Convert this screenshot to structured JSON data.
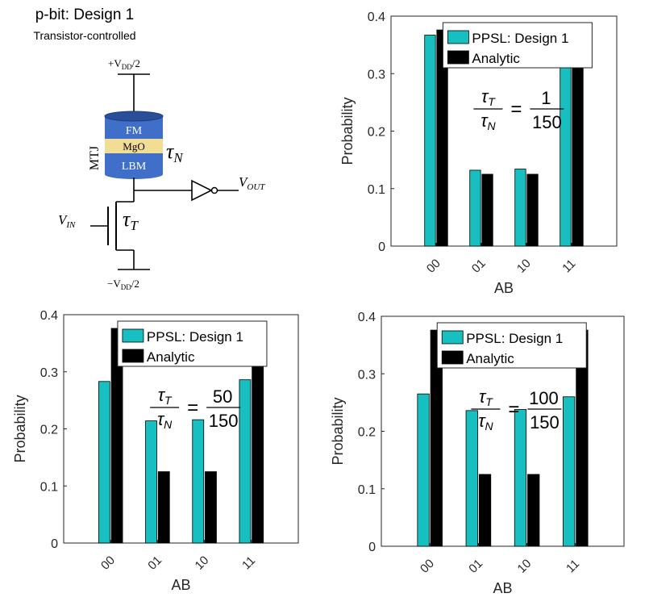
{
  "schematic": {
    "title": "p-bit: Design 1",
    "subtitle": "Transistor-controlled",
    "vdd_top": "+V",
    "vdd_top_sub": "DD",
    "vdd_top_div": "/2",
    "vdd_bot": "−V",
    "vdd_bot_sub": "DD",
    "vdd_bot_div": "/2",
    "mtj_label": "MTJ",
    "layer_fm": "FM",
    "layer_mgo": "MgO",
    "layer_lbm": "LBM",
    "tau_n": "τ",
    "tau_n_sub": "N",
    "tau_t": "τ",
    "tau_t_sub": "T",
    "vin": "V",
    "vin_sub": "IN",
    "vout": "V",
    "vout_sub": "OUT",
    "colors": {
      "fm": "#3f6fc8",
      "mgo": "#f2dd94",
      "lbm": "#3f6fc8"
    }
  },
  "colors": {
    "ppsl": "#17bfc0",
    "analytic": "#000000"
  },
  "chart_data": [
    {
      "type": "bar",
      "categories": [
        "00",
        "01",
        "10",
        "11"
      ],
      "series": [
        {
          "name": "PPSL: Design 1",
          "values": [
            0.367,
            0.132,
            0.134,
            0.367
          ]
        },
        {
          "name": "Analytic",
          "values": [
            0.376,
            0.125,
            0.125,
            0.376
          ]
        }
      ],
      "xlabel": "AB",
      "ylabel": "Probability",
      "ylim": [
        0,
        0.4
      ],
      "yticks": [
        "0",
        "0.1",
        "0.2",
        "0.3",
        "0.4"
      ],
      "ratio": {
        "num": "τ",
        "num_sub": "T",
        "den": "τ",
        "den_sub": "N",
        "eq": "=",
        "value_num": "1",
        "value_den": "150"
      }
    },
    {
      "type": "bar",
      "categories": [
        "00",
        "01",
        "10",
        "11"
      ],
      "series": [
        {
          "name": "PPSL: Design 1",
          "values": [
            0.283,
            0.214,
            0.216,
            0.286
          ]
        },
        {
          "name": "Analytic",
          "values": [
            0.376,
            0.125,
            0.125,
            0.376
          ]
        }
      ],
      "xlabel": "AB",
      "ylabel": "Probability",
      "ylim": [
        0,
        0.4
      ],
      "yticks": [
        "0",
        "0.1",
        "0.2",
        "0.3",
        "0.4"
      ],
      "ratio": {
        "num": "τ",
        "num_sub": "T",
        "den": "τ",
        "den_sub": "N",
        "eq": "=",
        "value_num": "50",
        "value_den": "150"
      }
    },
    {
      "type": "bar",
      "categories": [
        "00",
        "01",
        "10",
        "11"
      ],
      "series": [
        {
          "name": "PPSL: Design 1",
          "values": [
            0.265,
            0.236,
            0.238,
            0.26
          ]
        },
        {
          "name": "Analytic",
          "values": [
            0.376,
            0.125,
            0.125,
            0.376
          ]
        }
      ],
      "xlabel": "AB",
      "ylabel": "Probability",
      "ylim": [
        0,
        0.4
      ],
      "yticks": [
        "0",
        "0.1",
        "0.2",
        "0.3",
        "0.4"
      ],
      "ratio": {
        "num": "τ",
        "num_sub": "T",
        "den": "τ",
        "den_sub": "N",
        "eq": "=",
        "value_num": "100",
        "value_den": "150"
      }
    }
  ]
}
